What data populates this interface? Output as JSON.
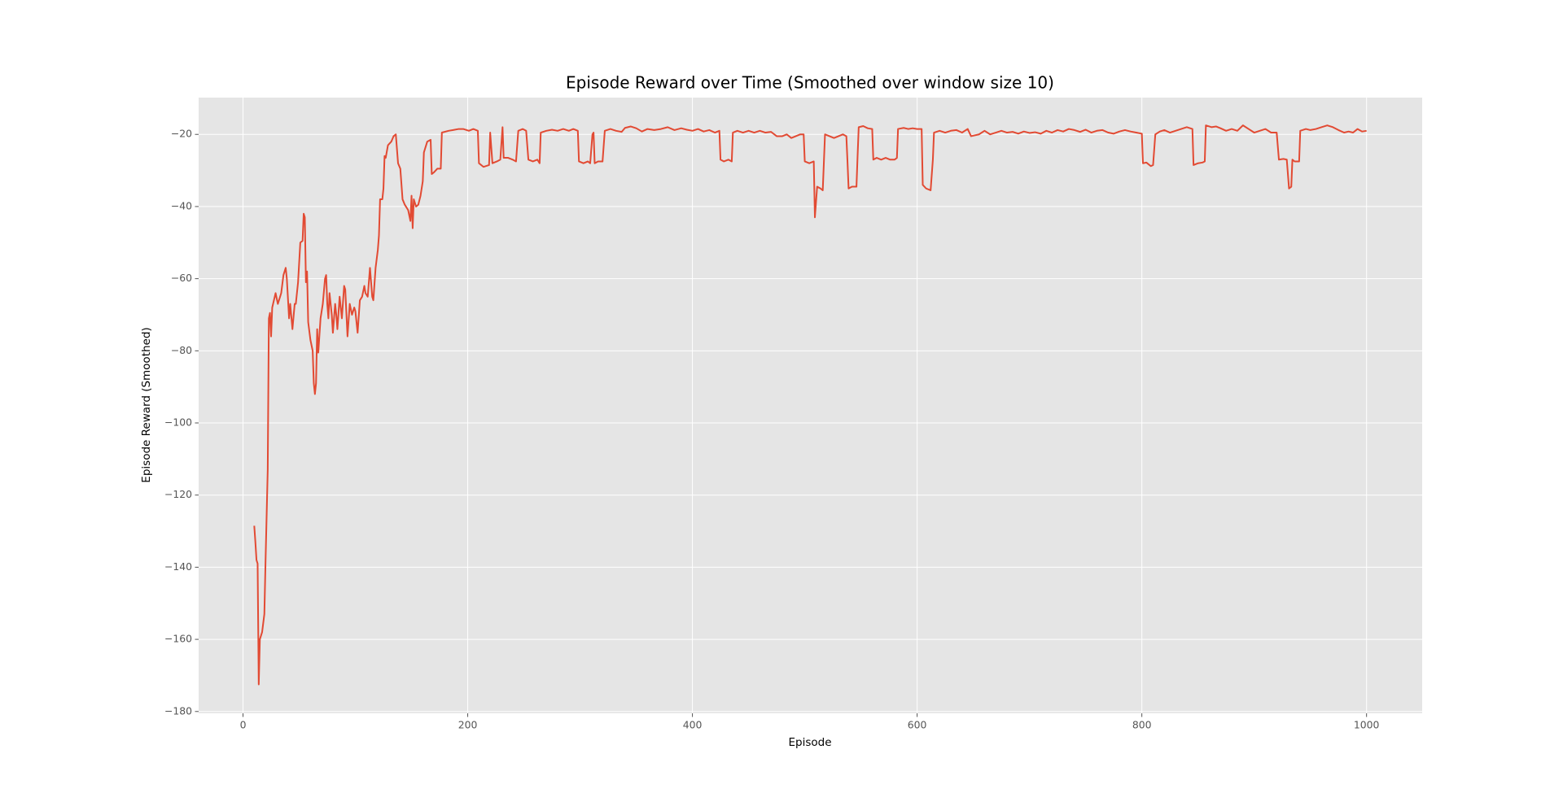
{
  "chart_data": {
    "type": "line",
    "title": "Episode Reward over Time (Smoothed over window size 10)",
    "xlabel": "Episode",
    "ylabel": "Episode Reward (Smoothed)",
    "color": "#E24A33",
    "grid": true,
    "xlim": [
      -39.5,
      1049.5
    ],
    "ylim": [
      -180.5,
      -9.8
    ],
    "xticks": [
      0,
      200,
      400,
      600,
      800,
      1000
    ],
    "yticks": [
      {
        "value": -180,
        "label": "−180"
      },
      {
        "value": -160,
        "label": "−160"
      },
      {
        "value": -140,
        "label": "−140"
      },
      {
        "value": -120,
        "label": "−120"
      },
      {
        "value": -100,
        "label": "−100"
      },
      {
        "value": -80,
        "label": "−80"
      },
      {
        "value": -60,
        "label": "−60"
      },
      {
        "value": -40,
        "label": "−40"
      },
      {
        "value": -20,
        "label": "−20"
      }
    ],
    "x": [
      10,
      11,
      12,
      13,
      14,
      15,
      17,
      19,
      20,
      22,
      23,
      24,
      25,
      26,
      29,
      31,
      34,
      36,
      38,
      39,
      41,
      42,
      44,
      46,
      47,
      49,
      51,
      53,
      54,
      55,
      56,
      57,
      58,
      60,
      62,
      63,
      64,
      65,
      66,
      67,
      69,
      71,
      73,
      74,
      75,
      76,
      77,
      79,
      80,
      82,
      83,
      84,
      86,
      88,
      90,
      91,
      93,
      95,
      97,
      99,
      100,
      102,
      104,
      106,
      108,
      109,
      111,
      113,
      115,
      116,
      118,
      120,
      121,
      122,
      124,
      125,
      126,
      127,
      129,
      132,
      134,
      136,
      138,
      140,
      142,
      144,
      147,
      149,
      150,
      151,
      152,
      154,
      156,
      158,
      160,
      161,
      162,
      164,
      167,
      168,
      170,
      173,
      176,
      177,
      183,
      187,
      192,
      196,
      201,
      205,
      209,
      210,
      214,
      219,
      220,
      222,
      226,
      229,
      231,
      232,
      236,
      240,
      243,
      245,
      249,
      252,
      254,
      258,
      262,
      264,
      265,
      270,
      275,
      280,
      285,
      290,
      294,
      298,
      299,
      303,
      307,
      309,
      311,
      312,
      313,
      316,
      320,
      322,
      327,
      332,
      337,
      340,
      345,
      350,
      355,
      360,
      366,
      372,
      378,
      384,
      390,
      395,
      400,
      405,
      410,
      415,
      420,
      424,
      425,
      428,
      432,
      435,
      436,
      440,
      445,
      450,
      455,
      460,
      465,
      470,
      475,
      480,
      484,
      488,
      492,
      496,
      499,
      500,
      504,
      508,
      509,
      511,
      514,
      516,
      518,
      522,
      526,
      530,
      534,
      537,
      538,
      539,
      542,
      546,
      547,
      548,
      552,
      556,
      560,
      561,
      564,
      568,
      572,
      576,
      580,
      582,
      583,
      588,
      592,
      596,
      600,
      604,
      605,
      608,
      612,
      614,
      615,
      620,
      625,
      630,
      635,
      640,
      645,
      648,
      655,
      660,
      665,
      670,
      675,
      680,
      685,
      690,
      695,
      700,
      705,
      710,
      715,
      720,
      725,
      730,
      735,
      740,
      745,
      750,
      755,
      760,
      765,
      770,
      775,
      780,
      785,
      790,
      795,
      800,
      801,
      804,
      808,
      810,
      812,
      816,
      820,
      825,
      830,
      835,
      840,
      845,
      846,
      850,
      854,
      856,
      857,
      862,
      866,
      870,
      875,
      880,
      885,
      890,
      895,
      900,
      905,
      910,
      915,
      920,
      922,
      926,
      929,
      931,
      933,
      934,
      936,
      940,
      941,
      946,
      950,
      955,
      960,
      965,
      970,
      975,
      980,
      984,
      988,
      992,
      996,
      1000
    ],
    "values": [
      -128.5,
      -133,
      -138,
      -139,
      -172.5,
      -160,
      -158,
      -153,
      -139,
      -113,
      -71,
      -69.5,
      -76,
      -68,
      -64,
      -67,
      -64,
      -59,
      -57,
      -60,
      -71,
      -67,
      -74,
      -67,
      -67,
      -61,
      -50,
      -49.5,
      -42,
      -43,
      -61,
      -58,
      -72,
      -77,
      -80,
      -89,
      -92,
      -89,
      -74,
      -80.5,
      -71,
      -67,
      -60,
      -59,
      -67,
      -71,
      -64,
      -70,
      -75,
      -67,
      -70,
      -74,
      -65,
      -71,
      -62,
      -63,
      -76,
      -67,
      -70,
      -68,
      -69,
      -75,
      -66,
      -65,
      -62,
      -64,
      -65,
      -57,
      -65,
      -66,
      -57,
      -52,
      -48,
      -38,
      -38,
      -35,
      -26,
      -26.5,
      -23,
      -22,
      -20.5,
      -20,
      -28,
      -29.5,
      -38,
      -39.5,
      -41,
      -44,
      -37,
      -46,
      -38,
      -40,
      -39.5,
      -37,
      -33,
      -25,
      -24,
      -22,
      -21.5,
      -31,
      -30.5,
      -29.5,
      -29.5,
      -19.5,
      -19,
      -18.8,
      -18.5,
      -18.5,
      -19,
      -18.5,
      -19,
      -28,
      -29,
      -28.5,
      -19.5,
      -28,
      -27.5,
      -27,
      -18,
      -26.5,
      -26.5,
      -27,
      -27.5,
      -19,
      -18.5,
      -19,
      -27,
      -27.5,
      -27,
      -28,
      -19.5,
      -19,
      -18.7,
      -19,
      -18.5,
      -19,
      -18.5,
      -19,
      -27.5,
      -28,
      -27.5,
      -28,
      -20,
      -19.5,
      -28,
      -27.5,
      -27.5,
      -19,
      -18.5,
      -19,
      -19.3,
      -18.2,
      -17.8,
      -18.3,
      -19.2,
      -18.5,
      -18.8,
      -18.5,
      -18,
      -18.8,
      -18.3,
      -18.7,
      -19,
      -18.5,
      -19.2,
      -18.8,
      -19.5,
      -19,
      -27,
      -27.5,
      -27,
      -27.5,
      -19.5,
      -19,
      -19.5,
      -19,
      -19.5,
      -19,
      -19.5,
      -19.3,
      -20.5,
      -20.5,
      -20,
      -21,
      -20.5,
      -20,
      -20,
      -27.5,
      -28,
      -27.5,
      -43,
      -34.5,
      -35,
      -35.5,
      -20,
      -20.5,
      -21,
      -20.5,
      -20,
      -20.5,
      -27.5,
      -35,
      -34.5,
      -34.5,
      -26,
      -18,
      -17.7,
      -18.3,
      -18.5,
      -27,
      -26.5,
      -27,
      -26.5,
      -27,
      -27,
      -26.5,
      -18.5,
      -18.2,
      -18.5,
      -18.3,
      -18.5,
      -18.5,
      -34,
      -35,
      -35.5,
      -27,
      -19.5,
      -19,
      -19.5,
      -19,
      -18.8,
      -19.5,
      -18.5,
      -20.5,
      -20,
      -19,
      -20,
      -19.5,
      -19,
      -19.5,
      -19.3,
      -19.8,
      -19.2,
      -19.6,
      -19.4,
      -19.8,
      -19,
      -19.5,
      -18.8,
      -19.2,
      -18.5,
      -18.8,
      -19.3,
      -18.7,
      -19.5,
      -19,
      -18.8,
      -19.5,
      -19.8,
      -19.2,
      -18.8,
      -19.2,
      -19.5,
      -19.8,
      -28,
      -27.8,
      -28.8,
      -28.5,
      -20,
      -19.2,
      -18.8,
      -19.5,
      -19,
      -18.5,
      -18,
      -18.5,
      -28.5,
      -28,
      -27.8,
      -27.5,
      -17.5,
      -18,
      -17.8,
      -18.3,
      -19,
      -18.5,
      -19,
      -17.5,
      -18.5,
      -19.5,
      -19,
      -18.5,
      -19.5,
      -19.5,
      -27,
      -26.8,
      -27,
      -35,
      -34.5,
      -27,
      -27.5,
      -27.5,
      -19,
      -18.5,
      -18.8,
      -18.5,
      -18,
      -17.5,
      -18,
      -18.8,
      -19.5,
      -19.2,
      -19.5,
      -18.5,
      -19.2,
      -19
    ]
  }
}
